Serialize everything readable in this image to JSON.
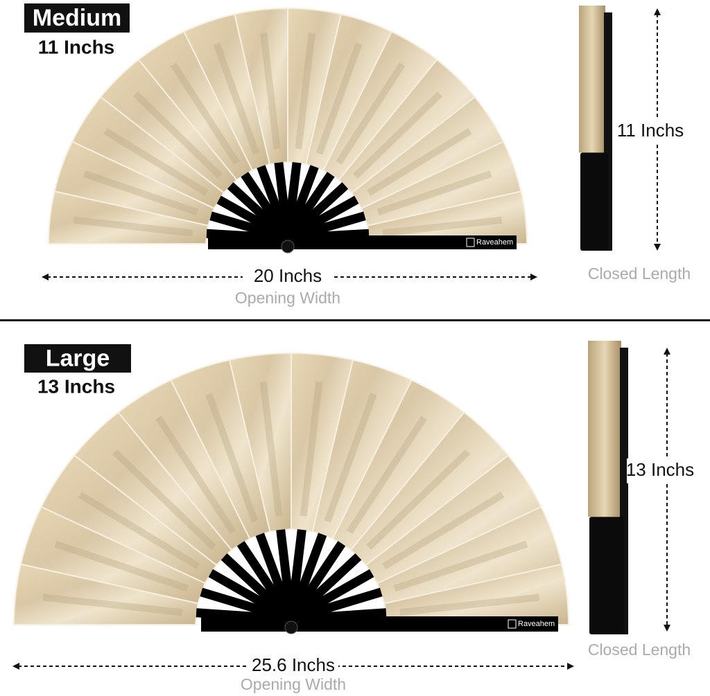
{
  "sections": [
    {
      "badge": "Medium",
      "size": "11 Inchs",
      "opening": "20 Inchs",
      "opening_caption": "Opening Width",
      "closed": "11 Inchs",
      "closed_caption": "Closed Length",
      "brand": "Raveahem"
    },
    {
      "badge": "Large",
      "size": "13 Inchs",
      "opening": "25.6 Inchs",
      "opening_caption": "Opening Width",
      "closed": "13 Inchs",
      "closed_caption": "Closed Length",
      "brand": "Raveahem"
    }
  ]
}
